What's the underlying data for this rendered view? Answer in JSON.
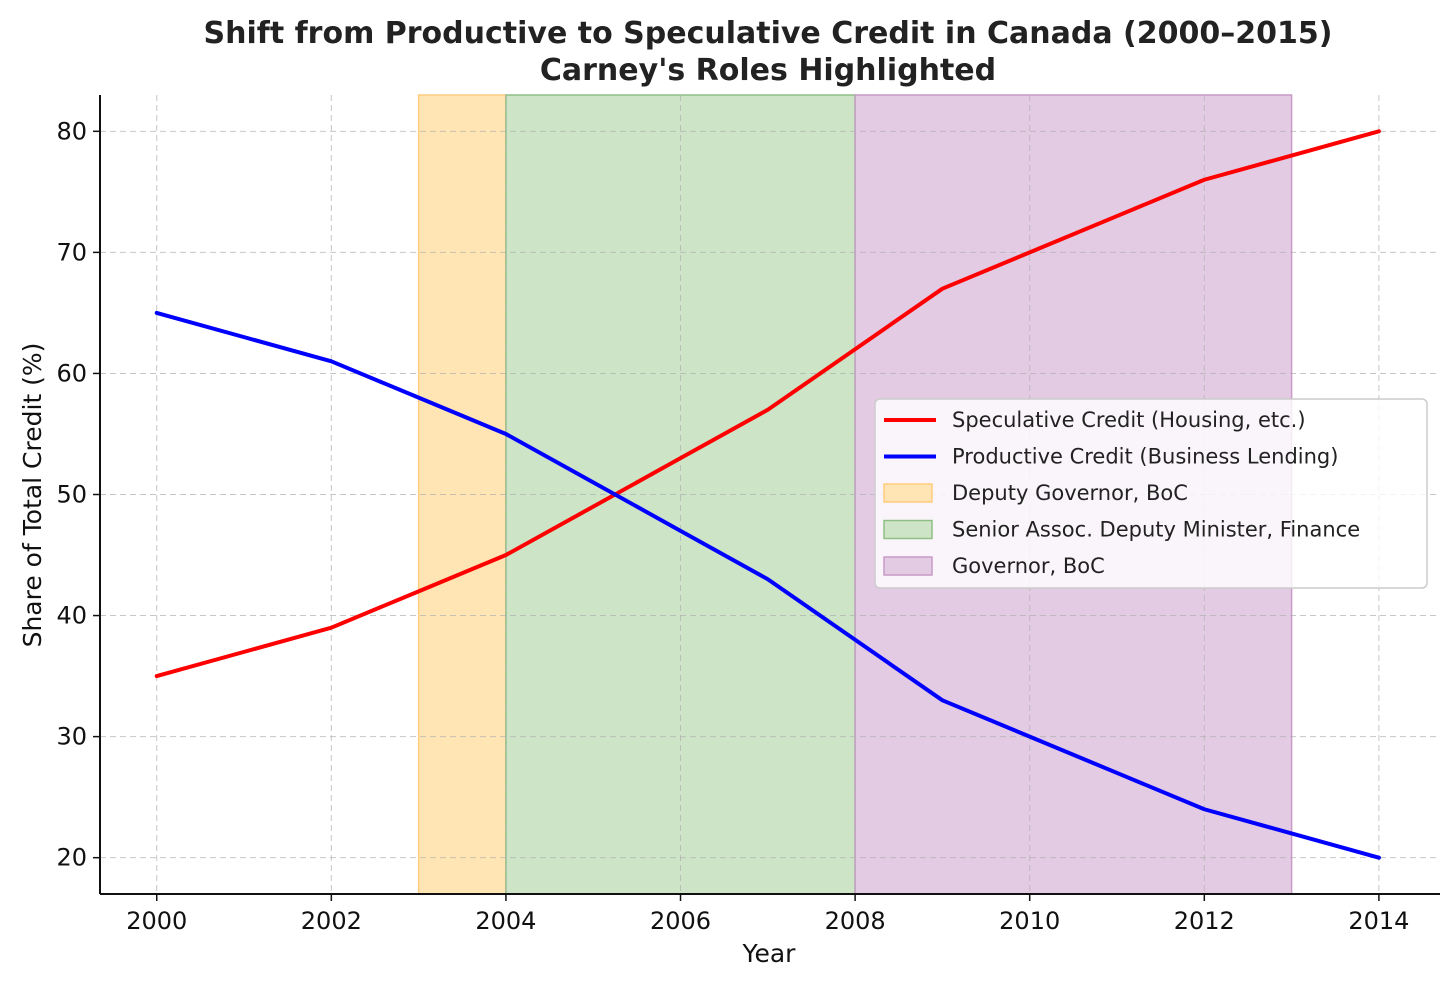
{
  "chart_data": {
    "type": "line",
    "title": "Shift from Productive to Speculative Credit in Canada (2000–2015)",
    "subtitle": "Carney's Roles Highlighted",
    "xlabel": "Year",
    "ylabel": "Share of Total Credit (%)",
    "xlim": [
      1999.35,
      2014.7
    ],
    "ylim": [
      17,
      83
    ],
    "xticks": [
      2000,
      2002,
      2004,
      2006,
      2008,
      2010,
      2012,
      2014
    ],
    "yticks": [
      20,
      30,
      40,
      50,
      60,
      70,
      80
    ],
    "grid": true,
    "legend_position": "center-right",
    "x": [
      2000,
      2001,
      2002,
      2003,
      2004,
      2005,
      2006,
      2007,
      2008,
      2009,
      2010,
      2011,
      2012,
      2013,
      2014
    ],
    "series": [
      {
        "name": "Speculative Credit (Housing, etc.)",
        "color": "#ff0000",
        "values": [
          35,
          37,
          39,
          42,
          45,
          49,
          53,
          57,
          62,
          67,
          70,
          73,
          76,
          78,
          80
        ]
      },
      {
        "name": "Productive Credit (Business Lending)",
        "color": "#0000ff",
        "values": [
          65,
          63,
          61,
          58,
          55,
          51,
          47,
          43,
          38,
          33,
          30,
          27,
          24,
          22,
          20
        ]
      }
    ],
    "spans": [
      {
        "name": "Deputy Governor, BoC",
        "start": 2003,
        "end": 2004,
        "color": "#ffe5b4",
        "edge": "#ffcc80"
      },
      {
        "name": "Senior Assoc. Deputy Minister, Finance",
        "start": 2004,
        "end": 2008,
        "color": "#cde4c7",
        "edge": "#8fbf86"
      },
      {
        "name": "Governor, BoC",
        "start": 2008,
        "end": 2013,
        "color": "#e4cbe4",
        "edge": "#c79ac7"
      }
    ]
  }
}
